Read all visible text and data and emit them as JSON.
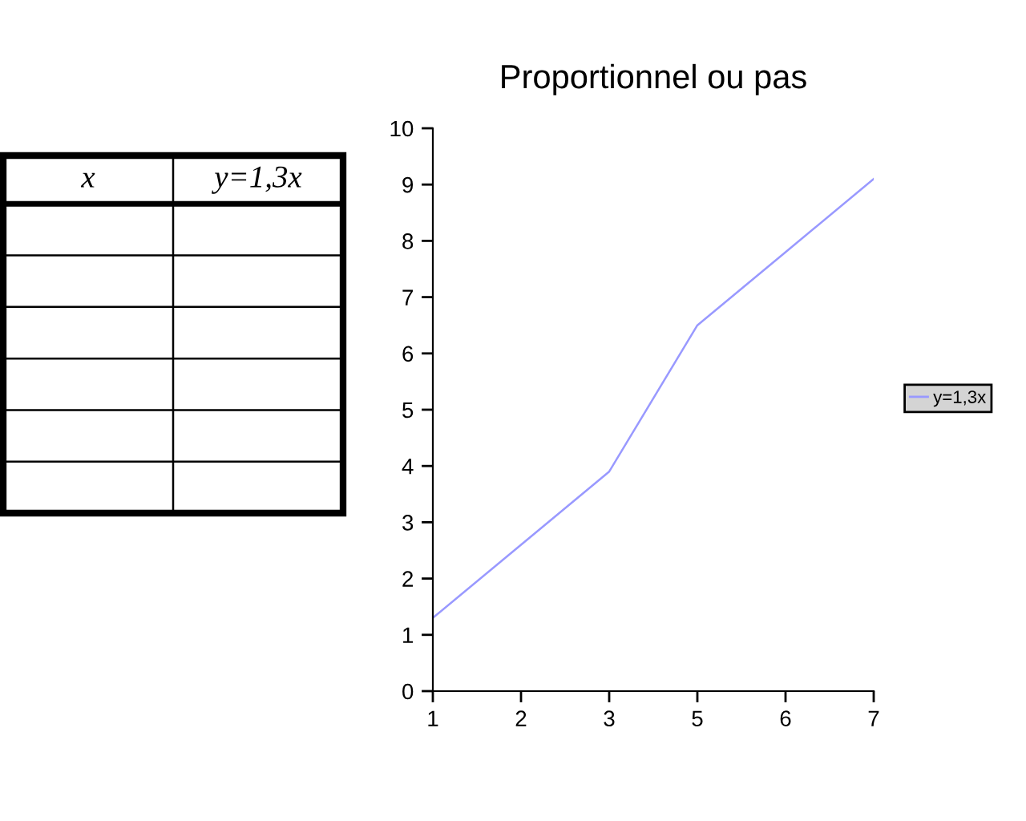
{
  "chart_data": [
    {
      "type": "other",
      "categories": [
        "x",
        "y=1,3x"
      ],
      "cells": [
        [
          null,
          null
        ],
        [
          null,
          null
        ],
        [
          null,
          null
        ],
        [
          null,
          null
        ],
        [
          null,
          null
        ],
        [
          null,
          null
        ]
      ]
    },
    {
      "type": "line",
      "title": "Proportionnel ou pas",
      "categories": [
        "1",
        "2",
        "3",
        "5",
        "6",
        "7"
      ],
      "series": [
        {
          "name": "y=1,3x",
          "color": "#9999ff",
          "values": [
            1.3,
            2.6,
            3.9,
            6.5,
            7.8,
            9.1
          ]
        }
      ],
      "ylim": [
        0,
        10
      ],
      "yticks": [
        0,
        1,
        2,
        3,
        4,
        5,
        6,
        7,
        8,
        9,
        10
      ],
      "grid": false,
      "legend": "right"
    }
  ]
}
